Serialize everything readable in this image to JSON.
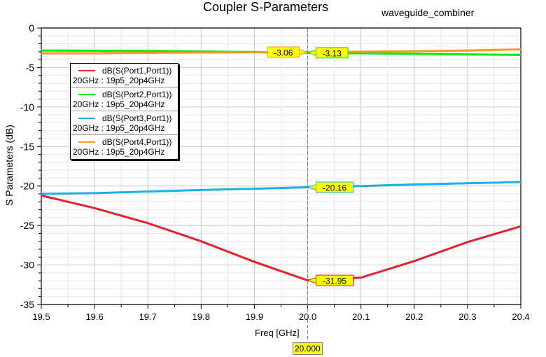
{
  "chart_data": {
    "type": "line",
    "title": "Coupler S-Parameters",
    "subtitle": "waveguide_combiner",
    "xlabel": "Freq [GHz]",
    "ylabel": "S Parameters (dB)",
    "xlim": [
      19.5,
      20.4
    ],
    "ylim": [
      -35,
      0
    ],
    "x_ticks": [
      "19.5",
      "19.6",
      "19.7",
      "19.8",
      "19.9",
      "20.0",
      "20.1",
      "20.2",
      "20.3",
      "20.4"
    ],
    "y_ticks": [
      "0",
      "-5",
      "-10",
      "-15",
      "-20",
      "-25",
      "-30",
      "-35"
    ],
    "grid": true,
    "legend_position": "upper-left",
    "x": [
      19.5,
      19.6,
      19.7,
      19.8,
      19.9,
      20.0,
      20.1,
      20.2,
      20.3,
      20.4
    ],
    "series": [
      {
        "name": "dB(S(Port1,Port1))",
        "sub": "20GHz : 19p5_20p4GHz",
        "color": "#e8202a",
        "values": [
          -21.2,
          -22.8,
          -24.7,
          -27.0,
          -29.6,
          -31.95,
          -31.6,
          -29.5,
          -27.1,
          -25.1
        ]
      },
      {
        "name": "dB(S(Port2,Port1))",
        "sub": "20GHz : 19p5_20p4GHz",
        "color": "#00ee00",
        "values": [
          -2.85,
          -2.87,
          -2.9,
          -2.98,
          -3.05,
          -3.13,
          -3.2,
          -3.27,
          -3.35,
          -3.4
        ]
      },
      {
        "name": "dB(S(Port3,Port1))",
        "sub": "20GHz : 19p5_20p4GHz",
        "color": "#1ab0e8",
        "values": [
          -21.0,
          -20.9,
          -20.7,
          -20.5,
          -20.35,
          -20.16,
          -20.0,
          -19.8,
          -19.65,
          -19.5
        ]
      },
      {
        "name": "dB(S(Port4,Port1))",
        "sub": "20GHz : 19p5_20p4GHz",
        "color": "#f59a23",
        "values": [
          -3.2,
          -3.2,
          -3.15,
          -3.1,
          -3.08,
          -3.06,
          -3.0,
          -2.95,
          -2.85,
          -2.7
        ]
      }
    ],
    "marker": {
      "x": "20.000",
      "labels": [
        "-3.06",
        "-3.13",
        "-20.16",
        "-31.95"
      ]
    }
  }
}
